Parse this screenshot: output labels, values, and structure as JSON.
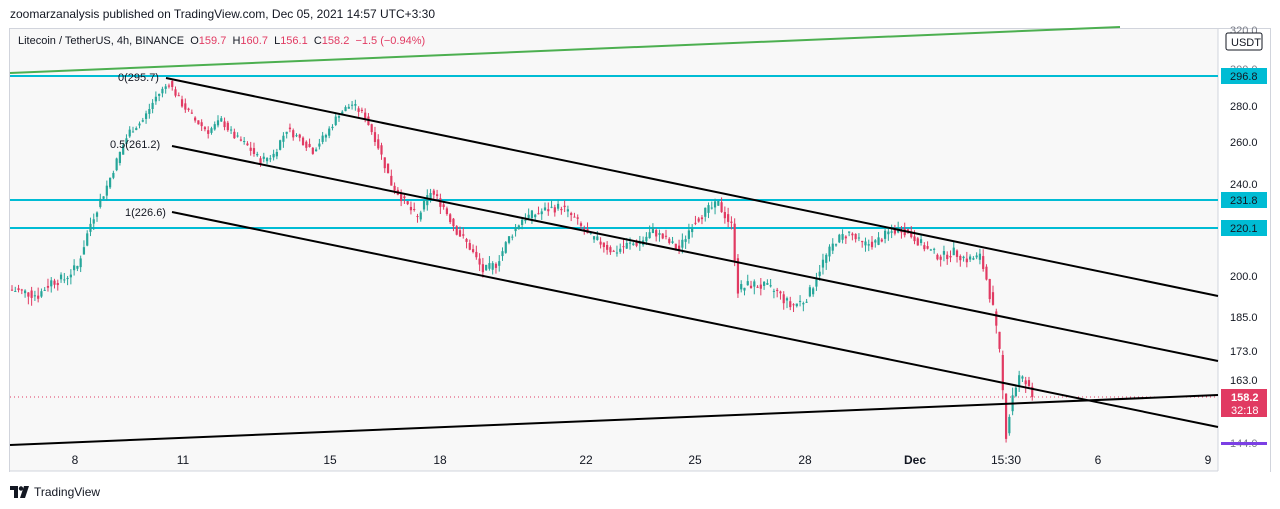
{
  "header": {
    "published": "zoomarzanalysis published on TradingView.com, Dec 05, 2021 14:57 UTC+3:30"
  },
  "legend": {
    "symbol": "Litecoin / TetherUS, 4h, BINANCE",
    "o_label": "O",
    "o": "159.7",
    "h_label": "H",
    "h": "160.7",
    "l_label": "L",
    "l": "156.1",
    "c_label": "C",
    "c": "158.2",
    "chg": "−1.5 (−0.94%)"
  },
  "footer": {
    "brand": "TradingView"
  },
  "colors": {
    "up": "#26a69a",
    "down": "#e13a62",
    "hline": "#00bcd4",
    "trendline": "#000000",
    "greenline": "#4caf50",
    "price_tag": "#e13a62"
  },
  "chart_data": {
    "type": "candlestick",
    "symbol": "Litecoin / TetherUS",
    "interval": "4h",
    "exchange": "BINANCE",
    "currency": "USDT",
    "last_price": "158.2",
    "countdown": "32:18",
    "y_ticks": [
      "280.0",
      "260.0",
      "240.0",
      "200.0",
      "185.0",
      "173.0",
      "163.0"
    ],
    "y_ticks_partial": [
      "320.0",
      "300.0",
      "144.0"
    ],
    "x_ticks": [
      "8",
      "11",
      "15",
      "18",
      "22",
      "25",
      "28",
      "Dec",
      "15:30",
      "6",
      "9"
    ],
    "horizontal_levels": [
      {
        "label": "296.8",
        "value": 296.8
      },
      {
        "label": "231.8",
        "value": 231.8
      },
      {
        "label": "220.1",
        "value": 220.1
      }
    ],
    "fib_levels": [
      {
        "label": "0(295.7)",
        "value": 295.7
      },
      {
        "label": "0.5(261.2)",
        "value": 261.2
      },
      {
        "label": "1(226.6)",
        "value": 226.6
      }
    ],
    "price_path": [
      [
        0,
        195
      ],
      [
        8,
        193
      ],
      [
        12,
        198
      ],
      [
        16,
        199
      ],
      [
        20,
        204
      ],
      [
        24,
        222
      ],
      [
        28,
        235
      ],
      [
        32,
        251
      ],
      [
        36,
        266
      ],
      [
        40,
        272
      ],
      [
        44,
        285
      ],
      [
        48,
        293
      ],
      [
        52,
        281
      ],
      [
        56,
        272
      ],
      [
        60,
        266
      ],
      [
        64,
        272
      ],
      [
        68,
        263
      ],
      [
        72,
        258
      ],
      [
        76,
        251
      ],
      [
        80,
        254
      ],
      [
        84,
        267
      ],
      [
        88,
        262
      ],
      [
        92,
        256
      ],
      [
        96,
        264
      ],
      [
        100,
        276
      ],
      [
        104,
        281
      ],
      [
        108,
        274
      ],
      [
        112,
        258
      ],
      [
        116,
        240
      ],
      [
        120,
        231
      ],
      [
        124,
        224
      ],
      [
        128,
        236
      ],
      [
        132,
        229
      ],
      [
        136,
        219
      ],
      [
        140,
        212
      ],
      [
        144,
        202
      ],
      [
        148,
        205
      ],
      [
        152,
        216
      ],
      [
        156,
        224
      ],
      [
        160,
        226
      ],
      [
        164,
        228
      ],
      [
        168,
        229
      ],
      [
        172,
        224
      ],
      [
        176,
        217
      ],
      [
        180,
        214
      ],
      [
        184,
        210
      ],
      [
        188,
        213
      ],
      [
        192,
        214
      ],
      [
        196,
        219
      ],
      [
        200,
        215
      ],
      [
        204,
        211
      ],
      [
        208,
        222
      ],
      [
        212,
        227
      ],
      [
        216,
        230
      ],
      [
        220,
        221
      ],
      [
        222,
        195
      ],
      [
        226,
        197
      ],
      [
        230,
        196
      ],
      [
        234,
        194
      ],
      [
        238,
        189
      ],
      [
        242,
        191
      ],
      [
        244,
        194
      ],
      [
        248,
        206
      ],
      [
        252,
        215
      ],
      [
        256,
        218
      ],
      [
        260,
        213
      ],
      [
        264,
        214
      ],
      [
        268,
        218
      ],
      [
        272,
        220
      ],
      [
        276,
        216
      ],
      [
        280,
        211
      ],
      [
        284,
        208
      ],
      [
        288,
        210
      ],
      [
        292,
        207
      ],
      [
        296,
        208
      ],
      [
        298,
        199
      ],
      [
        300,
        188
      ],
      [
        302,
        172
      ],
      [
        304,
        147
      ],
      [
        306,
        159
      ],
      [
        308,
        164
      ],
      [
        310,
        162
      ],
      [
        312,
        158.2
      ]
    ]
  }
}
